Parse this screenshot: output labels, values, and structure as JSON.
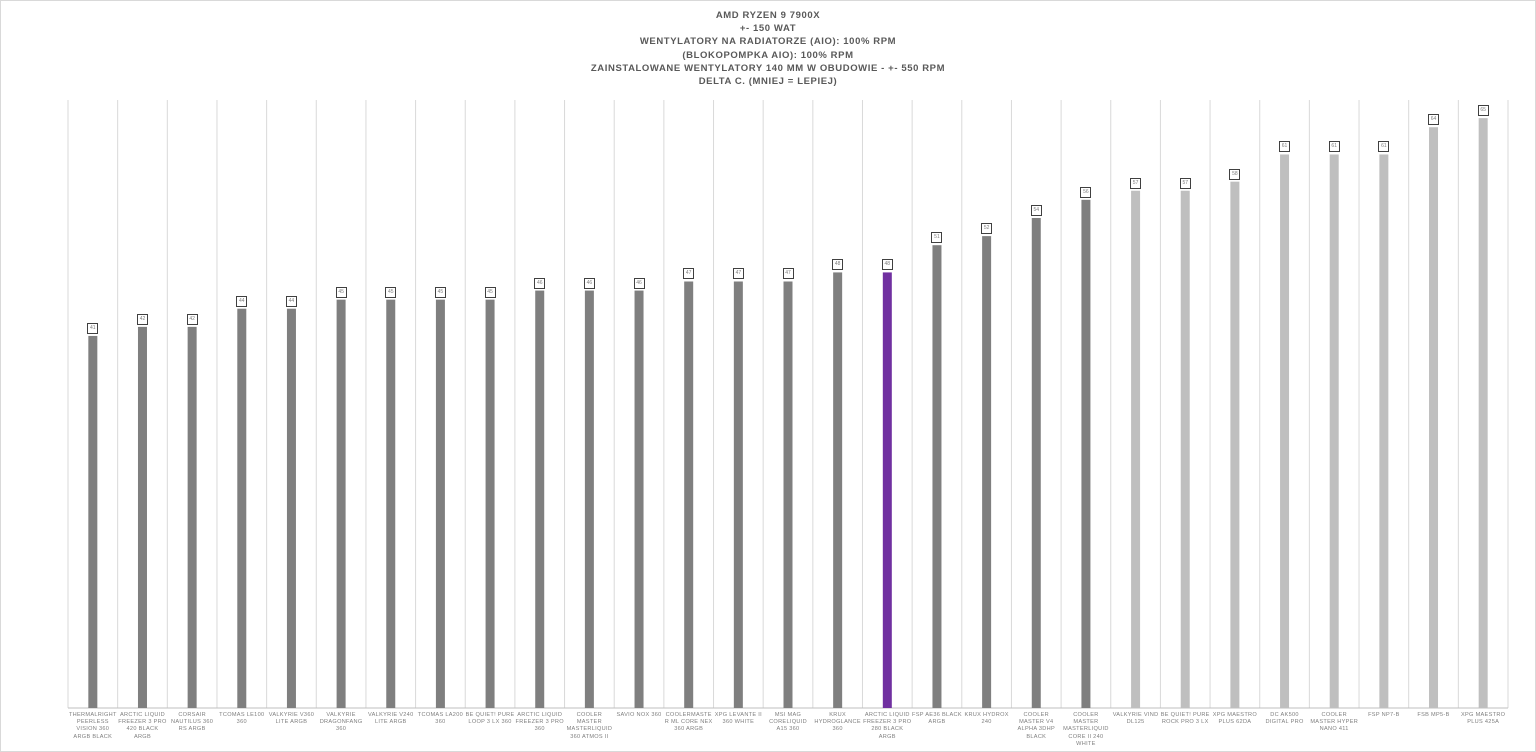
{
  "chart_data": {
    "type": "bar",
    "title_lines": [
      "AMD RYZEN 9 7900X",
      "+- 150 WAT",
      "WENTYLATORY NA RADIATORZE (AIO): 100% RPM",
      "(BLOKOPOMPKA AIO): 100% RPM",
      "ZAINSTALOWANE WENTYLATORY 140 MM W OBUDOWIE - +- 550 RPM",
      "DELTA C. (MNIEJ = LEPIEJ)"
    ],
    "xlabel": "",
    "ylabel": "",
    "ylim": [
      0,
      67
    ],
    "grid": "vertical",
    "legend": "none",
    "categories": [
      "THERMALRIGHT PEERLESS VISION 360 ARGB BLACK",
      "ARCTIC LIQUID FREEZER 3 PRO 420 BLACK ARGB",
      "CORSAIR NAUTILUS 360 RS ARGB",
      "TCOMAS LE100 360",
      "VALKYRIE V360 LITE ARGB",
      "VALKYRIE DRAGONFANG 360",
      "VALKYRIE V240 LITE ARGB",
      "TCOMAS LA200 360",
      "BE QUIET! PURE LOOP 3 LX 360",
      "ARCTIC LIQUID FREEZER 3 PRO 360",
      "COOLER MASTER MASTERLIQUID 360 ATMOS II",
      "SAVIO NOX 360",
      "COOLERMASTER ML CORE NEX 360 ARGB",
      "XPG LEVANTE II 360 WHITE",
      "MSI MAG CORELIQUID A15 360",
      "KRUX HYDROGLANCE 360",
      "ARCTIC LIQUID FREEZER 3 PRO 280 BLACK ARGB",
      "FSP AE36 BLACK ARGB",
      "KRUX HYDROX 240",
      "COOLER MASTER V4 ALPHA 3DHP BLACK",
      "COOLER MASTER MASTERLIQUID CORE II 240 WHITE",
      "VALKYRIE VIND DL125",
      "BE QUIET! PURE ROCK PRO 3 LX",
      "XPG MAESTRO PLUS 62DA",
      "DC AK500 DIGITAL PRO",
      "COOLER MASTER HYPER NANO 411",
      "FSP NP7-B",
      "FSB MP5-B",
      "XPG MAESTRO PLUS 425A"
    ],
    "values": [
      41,
      42,
      42,
      44,
      44,
      45,
      45,
      45,
      45,
      46,
      46,
      46,
      47,
      47,
      47,
      48,
      48,
      51,
      52,
      54,
      56,
      57,
      57,
      58,
      61,
      61,
      61,
      64,
      65
    ],
    "bar_types": [
      "aio",
      "aio",
      "aio",
      "aio",
      "aio",
      "aio",
      "aio",
      "aio",
      "aio",
      "aio",
      "aio",
      "aio",
      "aio",
      "aio",
      "aio",
      "aio",
      "highlight",
      "aio",
      "aio",
      "aio",
      "aio",
      "air",
      "air",
      "air",
      "air",
      "air",
      "air",
      "air",
      "air"
    ],
    "colors": {
      "aio": "#7f7f7f",
      "highlight": "#7030a0",
      "air": "#bfbfbf",
      "grid": "#d9d9d9",
      "axis": "#bfbfbf"
    }
  }
}
